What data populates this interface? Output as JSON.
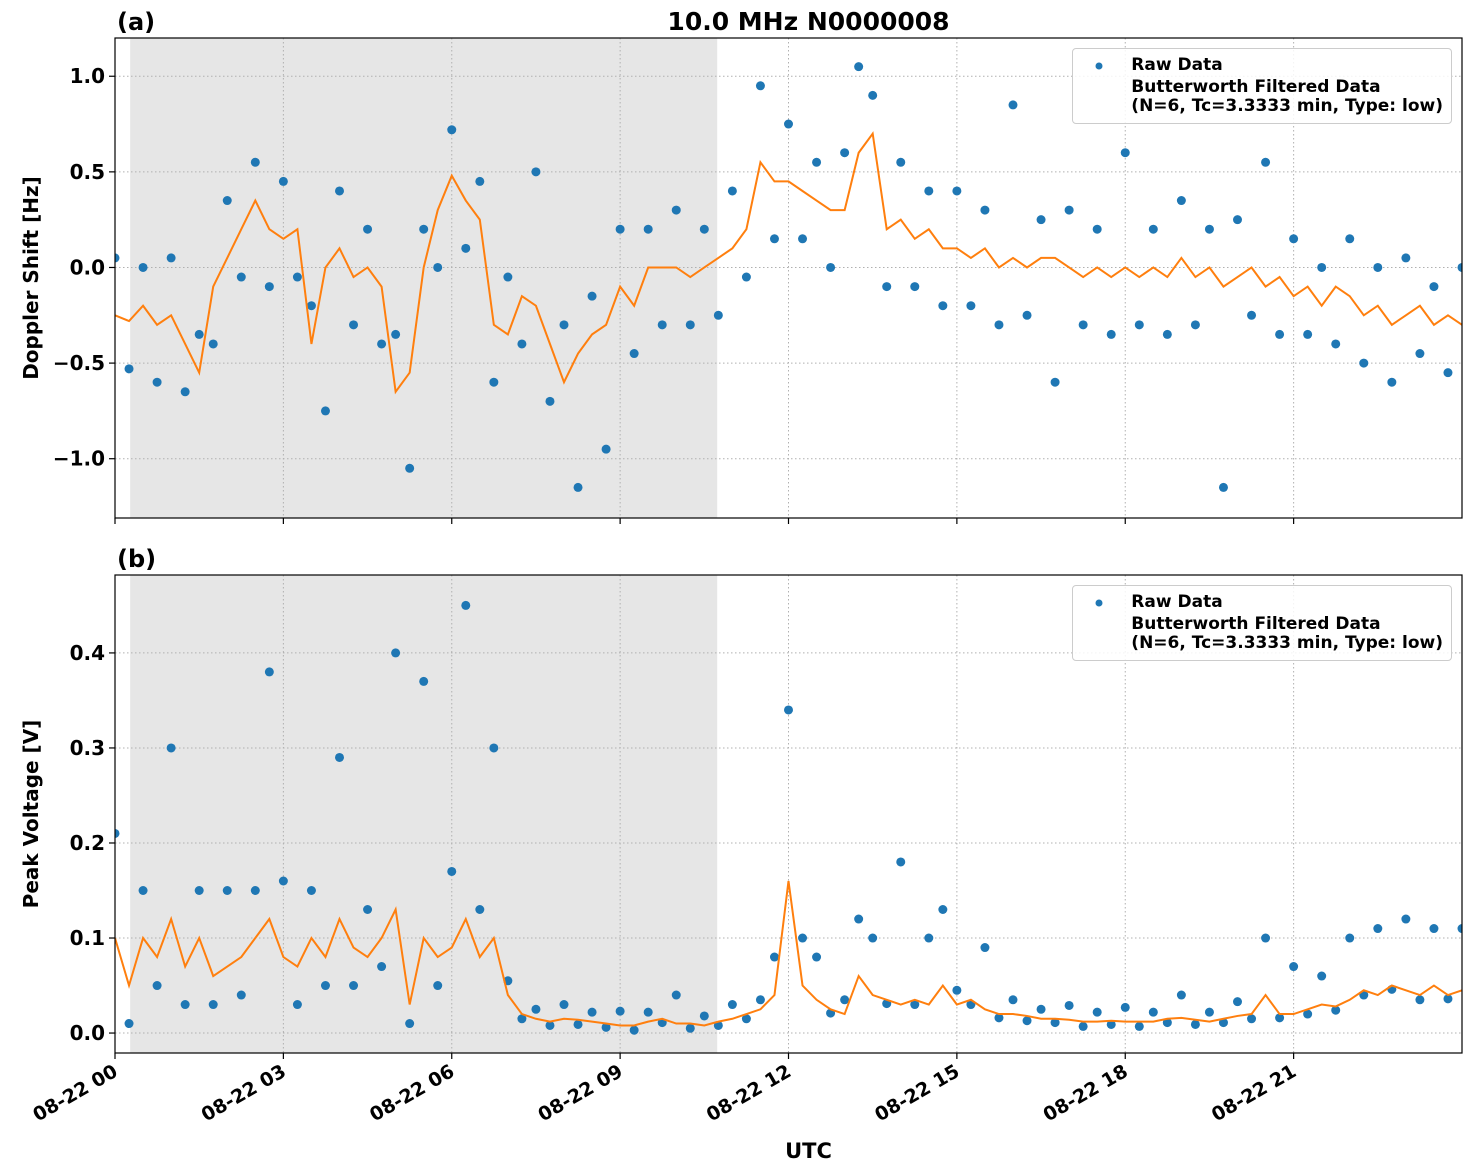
{
  "chart_data": [
    {
      "type": "line",
      "panel_label": "(a)",
      "title": "10.0 MHz N0000008",
      "ylabel": "Doppler Shift [Hz]",
      "xlim": [
        0,
        24
      ],
      "xticks": [
        0,
        3,
        6,
        9,
        12,
        15,
        18,
        21
      ],
      "ylim": [
        -1.31,
        1.2
      ],
      "yticks": [
        {
          "value": -1,
          "label": "−1.0"
        },
        {
          "value": -0.5,
          "label": "−0.5"
        },
        {
          "value": 0,
          "label": "0.0"
        },
        {
          "value": 0.5,
          "label": "0.5"
        },
        {
          "value": 1,
          "label": "1.0"
        }
      ],
      "grid": true,
      "legend": "upper right",
      "highlight_span": [
        0.27,
        10.73
      ],
      "x": [
        0,
        0.25,
        0.5,
        0.75,
        1,
        1.25,
        1.5,
        1.75,
        2,
        2.25,
        2.5,
        2.75,
        3,
        3.25,
        3.5,
        3.75,
        4,
        4.25,
        4.5,
        4.75,
        5,
        5.25,
        5.5,
        5.75,
        6,
        6.25,
        6.5,
        6.75,
        7,
        7.25,
        7.5,
        7.75,
        8,
        8.25,
        8.5,
        8.75,
        9,
        9.25,
        9.5,
        9.75,
        10,
        10.25,
        10.5,
        10.75,
        11,
        11.25,
        11.5,
        11.75,
        12,
        12.25,
        12.5,
        12.75,
        13,
        13.25,
        13.5,
        13.75,
        14,
        14.25,
        14.5,
        14.75,
        15,
        15.25,
        15.5,
        15.75,
        16,
        16.25,
        16.5,
        16.75,
        17,
        17.25,
        17.5,
        17.75,
        18,
        18.25,
        18.5,
        18.75,
        19,
        19.25,
        19.5,
        19.75,
        20,
        20.25,
        20.5,
        20.75,
        21,
        21.25,
        21.5,
        21.75,
        22,
        22.25,
        22.5,
        22.75,
        23,
        23.25,
        23.5,
        23.75,
        24
      ],
      "series": [
        {
          "name": "Raw Data",
          "type": "scatter",
          "color": "#1f77b4",
          "values": [
            0.05,
            -0.53,
            0,
            -0.6,
            0.05,
            -0.65,
            -0.35,
            -0.4,
            0.35,
            -0.05,
            0.55,
            -0.1,
            0.45,
            -0.05,
            -0.2,
            -0.75,
            0.4,
            -0.3,
            0.2,
            -0.4,
            -0.35,
            -1.05,
            0.2,
            0,
            0.72,
            0.1,
            0.45,
            -0.6,
            -0.05,
            -0.4,
            0.5,
            -0.7,
            -0.3,
            -1.15,
            -0.15,
            -0.95,
            0.2,
            -0.45,
            0.2,
            -0.3,
            0.3,
            -0.3,
            0.2,
            -0.25,
            0.4,
            -0.05,
            0.95,
            0.15,
            0.75,
            0.15,
            0.55,
            0,
            0.6,
            1.05,
            0.9,
            -0.1,
            0.55,
            -0.1,
            0.4,
            -0.2,
            0.4,
            -0.2,
            0.3,
            -0.3,
            0.85,
            -0.25,
            0.25,
            -0.6,
            0.3,
            -0.3,
            0.2,
            -0.35,
            0.6,
            -0.3,
            0.2,
            -0.35,
            0.35,
            -0.3,
            0.2,
            -1.15,
            0.25,
            -0.25,
            0.55,
            -0.35,
            0.15,
            -0.35,
            0,
            -0.4,
            0.15,
            -0.5,
            0,
            -0.6,
            0.05,
            -0.45,
            -0.1,
            -0.55,
            0
          ]
        },
        {
          "name": "Butterworth Filtered Data\n(N=6, Tc=3.3333 min, Type: low)",
          "type": "line",
          "color": "#ff7f0e",
          "values": [
            -0.25,
            -0.28,
            -0.2,
            -0.3,
            -0.25,
            -0.4,
            -0.55,
            -0.1,
            0.05,
            0.2,
            0.35,
            0.2,
            0.15,
            0.2,
            -0.4,
            0,
            0.1,
            -0.05,
            0,
            -0.1,
            -0.65,
            -0.55,
            0,
            0.3,
            0.48,
            0.35,
            0.25,
            -0.3,
            -0.35,
            -0.15,
            -0.2,
            -0.4,
            -0.6,
            -0.45,
            -0.35,
            -0.3,
            -0.1,
            -0.2,
            0,
            0,
            0,
            -0.05,
            0,
            0.05,
            0.1,
            0.2,
            0.55,
            0.45,
            0.45,
            0.4,
            0.35,
            0.3,
            0.3,
            0.6,
            0.7,
            0.2,
            0.25,
            0.15,
            0.2,
            0.1,
            0.1,
            0.05,
            0.1,
            0,
            0.05,
            0,
            0.05,
            0.05,
            0,
            -0.05,
            0,
            -0.05,
            0,
            -0.05,
            0,
            -0.05,
            0.05,
            -0.05,
            0,
            -0.1,
            -0.05,
            0,
            -0.1,
            -0.05,
            -0.15,
            -0.1,
            -0.2,
            -0.1,
            -0.15,
            -0.25,
            -0.2,
            -0.3,
            -0.25,
            -0.2,
            -0.3,
            -0.25,
            -0.3
          ]
        }
      ]
    },
    {
      "type": "line",
      "panel_label": "(b)",
      "ylabel": "Peak Voltage [V]",
      "xlabel": "UTC",
      "xlim": [
        0,
        24
      ],
      "xticks": [
        {
          "value": 0,
          "label": "08-22 00"
        },
        {
          "value": 3,
          "label": "08-22 03"
        },
        {
          "value": 6,
          "label": "08-22 06"
        },
        {
          "value": 9,
          "label": "08-22 09"
        },
        {
          "value": 12,
          "label": "08-22 12"
        },
        {
          "value": 15,
          "label": "08-22 15"
        },
        {
          "value": 18,
          "label": "08-22 18"
        },
        {
          "value": 21,
          "label": "08-22 21"
        }
      ],
      "ylim": [
        -0.021,
        0.482
      ],
      "yticks": [
        {
          "value": 0,
          "label": "0.0"
        },
        0.1,
        0.2,
        0.3,
        0.4
      ],
      "grid": true,
      "legend": "upper right",
      "highlight_span": [
        0.27,
        10.73
      ],
      "x": [
        0,
        0.25,
        0.5,
        0.75,
        1,
        1.25,
        1.5,
        1.75,
        2,
        2.25,
        2.5,
        2.75,
        3,
        3.25,
        3.5,
        3.75,
        4,
        4.25,
        4.5,
        4.75,
        5,
        5.25,
        5.5,
        5.75,
        6,
        6.25,
        6.5,
        6.75,
        7,
        7.25,
        7.5,
        7.75,
        8,
        8.25,
        8.5,
        8.75,
        9,
        9.25,
        9.5,
        9.75,
        10,
        10.25,
        10.5,
        10.75,
        11,
        11.25,
        11.5,
        11.75,
        12,
        12.25,
        12.5,
        12.75,
        13,
        13.25,
        13.5,
        13.75,
        14,
        14.25,
        14.5,
        14.75,
        15,
        15.25,
        15.5,
        15.75,
        16,
        16.25,
        16.5,
        16.75,
        17,
        17.25,
        17.5,
        17.75,
        18,
        18.25,
        18.5,
        18.75,
        19,
        19.25,
        19.5,
        19.75,
        20,
        20.25,
        20.5,
        20.75,
        21,
        21.25,
        21.5,
        21.75,
        22,
        22.25,
        22.5,
        22.75,
        23,
        23.25,
        23.5,
        23.75,
        24
      ],
      "series": [
        {
          "name": "Raw Data",
          "type": "scatter",
          "color": "#1f77b4",
          "values": [
            0.21,
            0.01,
            0.15,
            0.05,
            0.3,
            0.03,
            0.15,
            0.03,
            0.15,
            0.04,
            0.15,
            0.38,
            0.16,
            0.03,
            0.15,
            0.05,
            0.29,
            0.05,
            0.13,
            0.07,
            0.4,
            0.01,
            0.37,
            0.05,
            0.17,
            0.45,
            0.13,
            0.3,
            0.055,
            0.015,
            0.025,
            0.008,
            0.03,
            0.009,
            0.022,
            0.006,
            0.023,
            0.003,
            0.022,
            0.011,
            0.04,
            0.005,
            0.018,
            0.008,
            0.03,
            0.015,
            0.035,
            0.08,
            0.34,
            0.1,
            0.08,
            0.021,
            0.035,
            0.12,
            0.1,
            0.031,
            0.18,
            0.03,
            0.1,
            0.13,
            0.045,
            0.03,
            0.09,
            0.016,
            0.035,
            0.013,
            0.025,
            0.011,
            0.029,
            0.007,
            0.022,
            0.009,
            0.027,
            0.007,
            0.022,
            0.011,
            0.04,
            0.009,
            0.022,
            0.011,
            0.033,
            0.015,
            0.1,
            0.016,
            0.07,
            0.02,
            0.06,
            0.024,
            0.1,
            0.04,
            0.11,
            0.046,
            0.12,
            0.035,
            0.11,
            0.036,
            0.11
          ]
        },
        {
          "name": "Butterworth Filtered Data\n(N=6, Tc=3.3333 min, Type: low)",
          "type": "line",
          "color": "#ff7f0e",
          "values": [
            0.1,
            0.05,
            0.1,
            0.08,
            0.12,
            0.07,
            0.1,
            0.06,
            0.07,
            0.08,
            0.1,
            0.12,
            0.08,
            0.07,
            0.1,
            0.08,
            0.12,
            0.09,
            0.08,
            0.1,
            0.13,
            0.03,
            0.1,
            0.08,
            0.09,
            0.12,
            0.08,
            0.1,
            0.04,
            0.02,
            0.015,
            0.012,
            0.015,
            0.014,
            0.012,
            0.01,
            0.008,
            0.008,
            0.012,
            0.015,
            0.01,
            0.01,
            0.008,
            0.012,
            0.015,
            0.02,
            0.025,
            0.04,
            0.16,
            0.05,
            0.035,
            0.025,
            0.02,
            0.06,
            0.04,
            0.035,
            0.03,
            0.035,
            0.03,
            0.05,
            0.03,
            0.035,
            0.025,
            0.02,
            0.02,
            0.018,
            0.015,
            0.015,
            0.014,
            0.012,
            0.012,
            0.013,
            0.012,
            0.012,
            0.012,
            0.015,
            0.016,
            0.014,
            0.012,
            0.015,
            0.018,
            0.02,
            0.04,
            0.02,
            0.02,
            0.025,
            0.03,
            0.028,
            0.035,
            0.045,
            0.04,
            0.05,
            0.045,
            0.04,
            0.05,
            0.04,
            0.045
          ]
        }
      ]
    }
  ]
}
